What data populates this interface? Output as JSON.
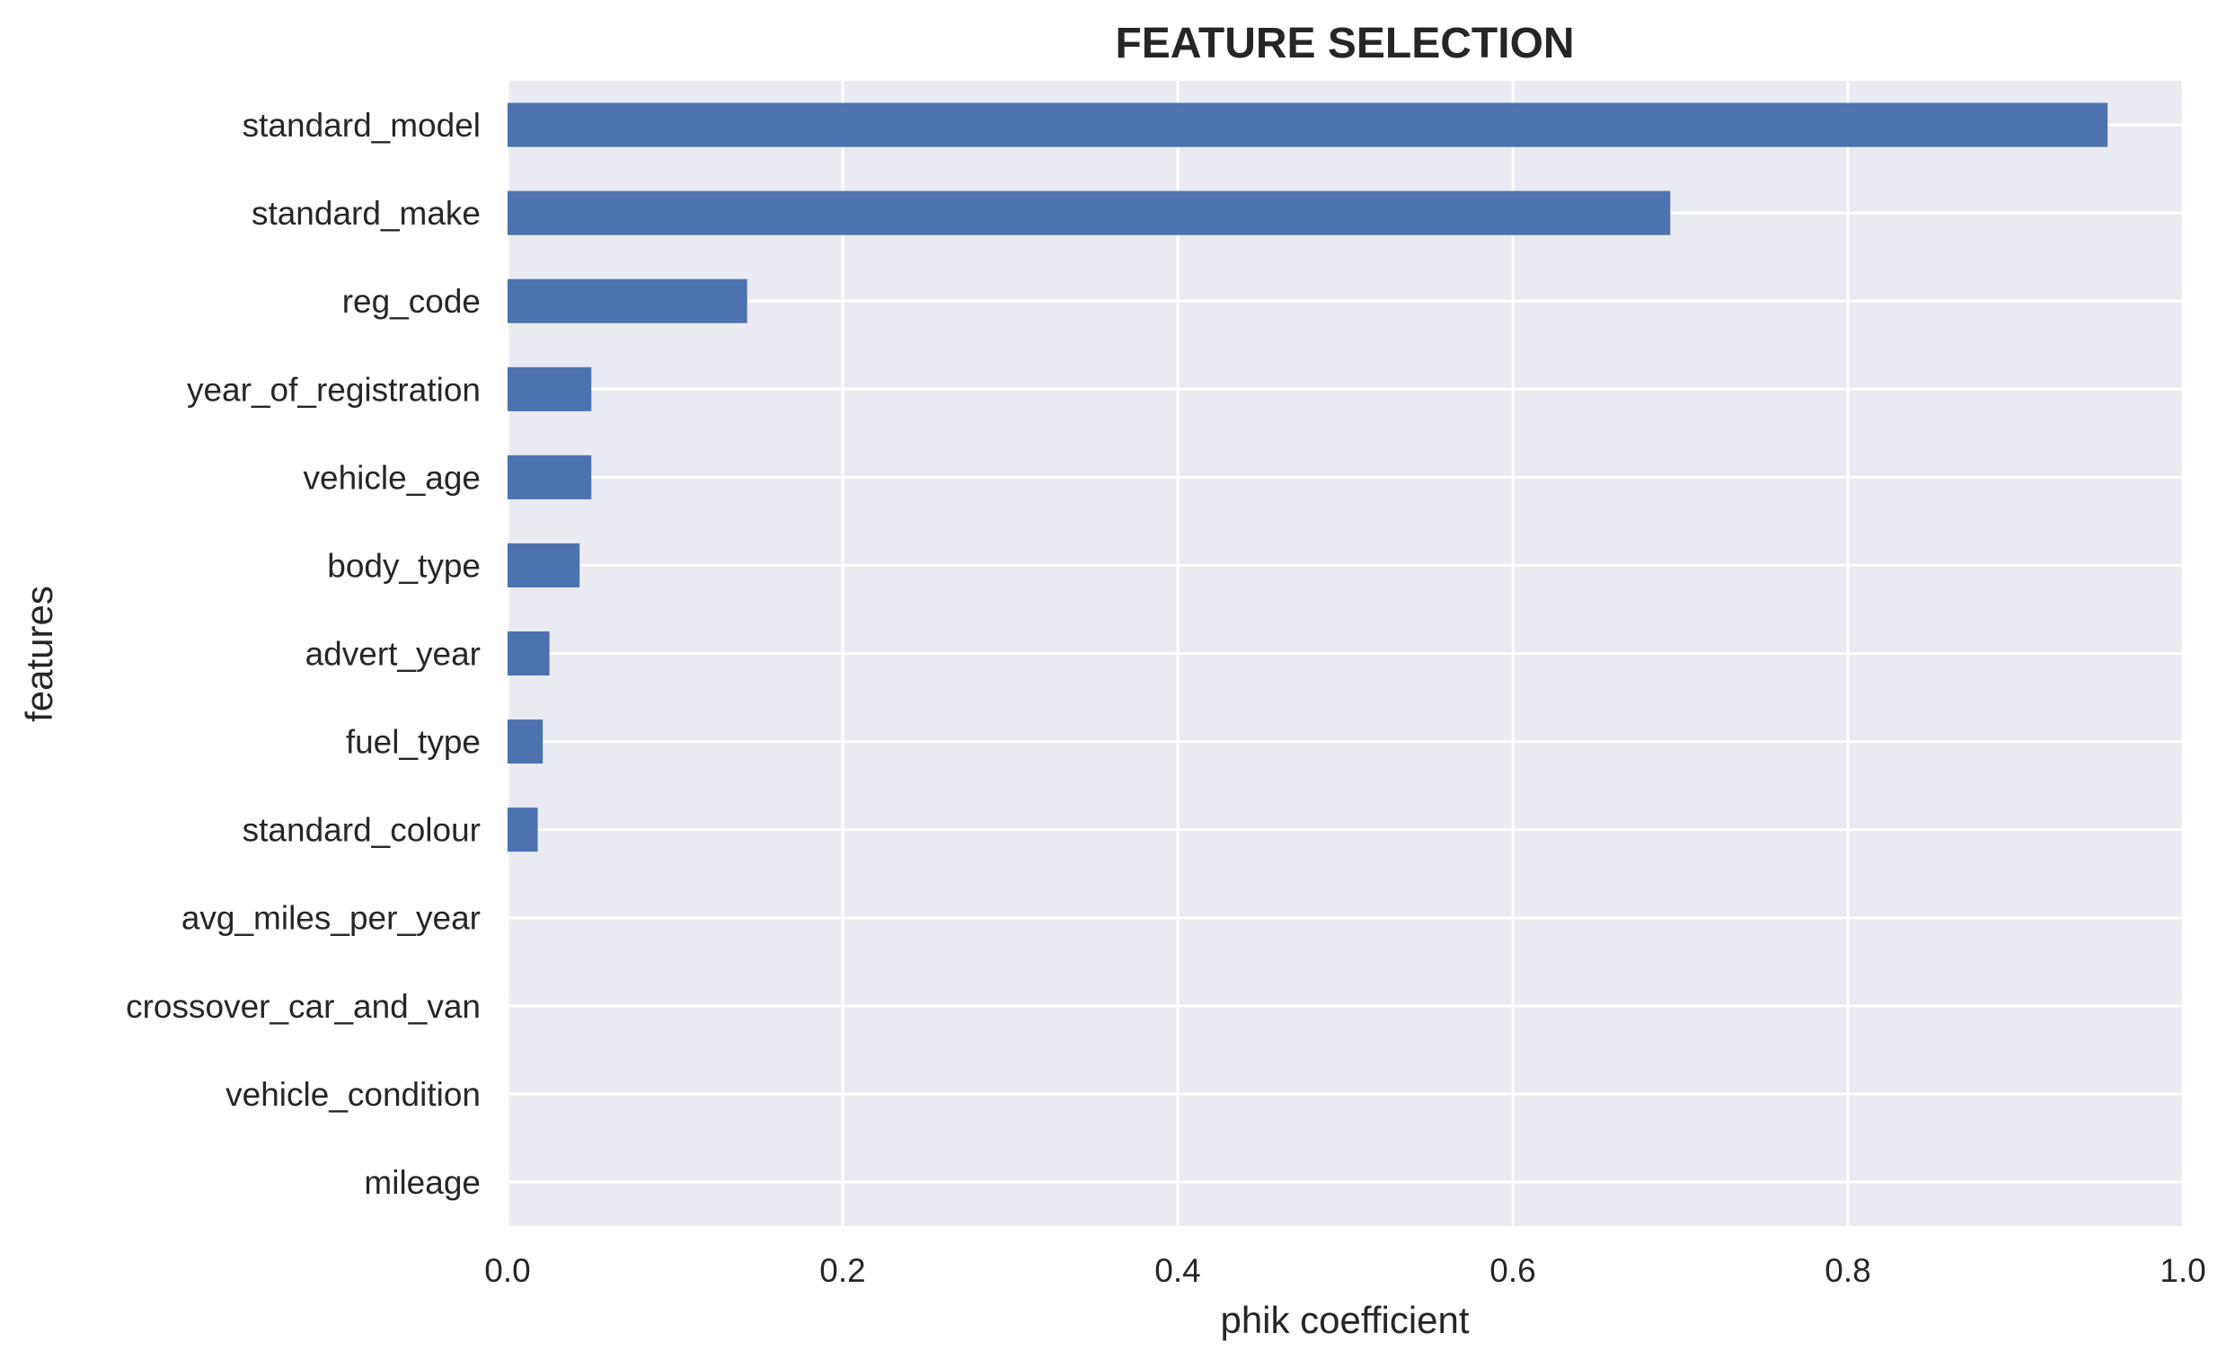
{
  "chart_data": {
    "type": "bar",
    "orientation": "horizontal",
    "title": "FEATURE SELECTION",
    "xlabel": "phik coefficient",
    "ylabel": "features",
    "xlim": [
      0,
      1.0
    ],
    "xticks": [
      0.0,
      0.2,
      0.4,
      0.6,
      0.8,
      1.0
    ],
    "xtick_labels": [
      "0.0",
      "0.2",
      "0.4",
      "0.6",
      "0.8",
      "1.0"
    ],
    "grid": true,
    "categories": [
      "standard_model",
      "standard_make",
      "reg_code",
      "year_of_registration",
      "vehicle_age",
      "body_type",
      "advert_year",
      "fuel_type",
      "standard_colour",
      "avg_miles_per_year",
      "crossover_car_and_van",
      "vehicle_condition",
      "mileage"
    ],
    "values": [
      0.955,
      0.694,
      0.143,
      0.05,
      0.05,
      0.043,
      0.025,
      0.021,
      0.018,
      0.0,
      0.0,
      0.0,
      0.0
    ],
    "colors": {
      "bar": "#4c72b0",
      "plot_background": "#eaeaf2",
      "grid": "#ffffff"
    }
  }
}
